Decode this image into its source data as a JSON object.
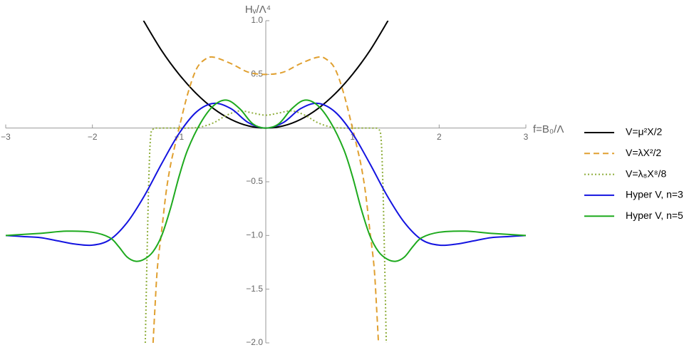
{
  "chart_data": {
    "type": "line",
    "xlabel": "f=B₀/Λ",
    "ylabel": "Hᵥ/Λ⁴",
    "xlim": [
      -3,
      3
    ],
    "ylim": [
      -2,
      1
    ],
    "xticks": [
      {
        "value": -3,
        "label": "−3"
      },
      {
        "value": -2,
        "label": "−2"
      },
      {
        "value": -1,
        "label": "−1"
      },
      1,
      2,
      3
    ],
    "yticks": [
      {
        "value": 1,
        "label": "1.0"
      },
      {
        "value": 0.5,
        "label": "0.5"
      },
      {
        "value": -0.5,
        "label": "−0.5"
      },
      {
        "value": -1,
        "label": "−1.0"
      },
      {
        "value": -1.5,
        "label": "−1.5"
      },
      {
        "value": -2,
        "label": "−2.0"
      }
    ],
    "legend": "right",
    "series": [
      {
        "name": "V=μ²X/2",
        "color": "#000000",
        "dash": "none",
        "x": [
          -1.41,
          -1.2,
          -1.0,
          -0.8,
          -0.6,
          -0.4,
          -0.2,
          0,
          0.2,
          0.4,
          0.6,
          0.8,
          1.0,
          1.2,
          1.41
        ],
        "values": [
          1.0,
          0.72,
          0.5,
          0.32,
          0.18,
          0.08,
          0.02,
          0,
          0.02,
          0.08,
          0.18,
          0.32,
          0.5,
          0.72,
          1.0
        ]
      },
      {
        "name": "V=λX²/2",
        "color": "#e0a030",
        "dash": "8,5",
        "x": [
          -1.3,
          -1.28,
          -1.25,
          -1.2,
          -1.15,
          -1.1,
          -1.05,
          -1.0,
          -0.9,
          -0.8,
          -0.7,
          -0.6,
          -0.4,
          -0.2,
          0,
          0.2,
          0.4,
          0.6,
          0.7,
          0.8,
          0.9,
          1.0,
          1.05,
          1.1,
          1.15,
          1.2,
          1.25,
          1.28,
          1.3
        ],
        "values": [
          -2.0,
          -1.7,
          -1.3,
          -0.95,
          -0.6,
          -0.35,
          -0.17,
          0,
          0.32,
          0.55,
          0.64,
          0.66,
          0.6,
          0.52,
          0.5,
          0.52,
          0.6,
          0.66,
          0.64,
          0.55,
          0.32,
          0,
          -0.17,
          -0.35,
          -0.6,
          -0.95,
          -1.3,
          -1.7,
          -2.0
        ]
      },
      {
        "name": "V=λ₈X⁸/8",
        "color": "#8fae3c",
        "dash": "2,3",
        "x": [
          -1.39,
          -1.38,
          -1.37,
          -1.35,
          -1.33,
          -1.3,
          -1.2,
          -0.9,
          -0.75,
          -0.6,
          -0.45,
          -0.3,
          -0.15,
          0,
          0.15,
          0.3,
          0.45,
          0.6,
          0.75,
          0.9,
          1.2,
          1.3,
          1.33,
          1.35,
          1.37,
          1.38,
          1.39
        ],
        "values": [
          -2.0,
          -1.6,
          -1.2,
          -0.5,
          -0.1,
          -0.01,
          0,
          0,
          0.01,
          0.05,
          0.12,
          0.16,
          0.14,
          0.12,
          0.14,
          0.16,
          0.12,
          0.05,
          0.01,
          0,
          0,
          -0.01,
          -0.1,
          -0.5,
          -1.2,
          -1.6,
          -2.0
        ]
      },
      {
        "name": "Hyper V, n=3",
        "color": "#1414e0",
        "dash": "none",
        "x": [
          -3,
          -2.8,
          -2.6,
          -2.4,
          -2.2,
          -2.0,
          -1.8,
          -1.6,
          -1.4,
          -1.2,
          -1.0,
          -0.8,
          -0.6,
          -0.4,
          -0.2,
          0,
          0.2,
          0.4,
          0.6,
          0.8,
          1.0,
          1.2,
          1.4,
          1.6,
          1.8,
          2.0,
          2.2,
          2.4,
          2.6,
          2.8,
          3
        ],
        "values": [
          -1.0,
          -1.01,
          -1.02,
          -1.05,
          -1.08,
          -1.09,
          -1.04,
          -0.88,
          -0.63,
          -0.33,
          -0.05,
          0.15,
          0.23,
          0.18,
          0.05,
          0,
          0.05,
          0.18,
          0.23,
          0.15,
          -0.05,
          -0.33,
          -0.63,
          -0.88,
          -1.04,
          -1.09,
          -1.08,
          -1.05,
          -1.02,
          -1.01,
          -1.0
        ]
      },
      {
        "name": "Hyper V, n=5",
        "color": "#1eaa1e",
        "dash": "none",
        "x": [
          -3,
          -2.6,
          -2.3,
          -2.0,
          -1.8,
          -1.7,
          -1.6,
          -1.5,
          -1.4,
          -1.3,
          -1.2,
          -1.1,
          -1.0,
          -0.9,
          -0.75,
          -0.6,
          -0.45,
          -0.3,
          -0.15,
          0,
          0.15,
          0.3,
          0.45,
          0.6,
          0.75,
          0.9,
          1.0,
          1.1,
          1.2,
          1.3,
          1.4,
          1.5,
          1.6,
          1.7,
          1.8,
          2.0,
          2.3,
          2.6,
          3
        ],
        "values": [
          -1.0,
          -0.98,
          -0.96,
          -0.97,
          -1.02,
          -1.1,
          -1.2,
          -1.24,
          -1.22,
          -1.15,
          -1.0,
          -0.75,
          -0.45,
          -0.2,
          0.05,
          0.21,
          0.26,
          0.18,
          0.04,
          0,
          0.04,
          0.18,
          0.26,
          0.21,
          0.05,
          -0.2,
          -0.45,
          -0.75,
          -1.0,
          -1.15,
          -1.22,
          -1.24,
          -1.2,
          -1.1,
          -1.02,
          -0.97,
          -0.96,
          -0.98,
          -1.0
        ]
      }
    ]
  }
}
